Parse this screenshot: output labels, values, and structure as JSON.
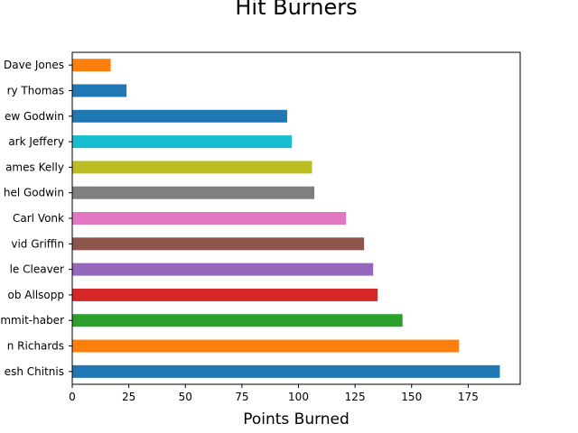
{
  "chart_data": {
    "type": "bar",
    "orientation": "horizontal",
    "title": "Hit Burners",
    "xlabel": "Points Burned",
    "ylabel": "",
    "xlim": [
      0,
      198
    ],
    "xticks": [
      0,
      25,
      50,
      75,
      100,
      125,
      150,
      175
    ],
    "grid": false,
    "legend": "none",
    "categories": [
      "Dave Jones",
      "ry Thomas",
      "ew Godwin",
      "ark Jeffery",
      "ames Kelly",
      "hel Godwin",
      "Carl Vonk",
      "vid Griffin",
      "le Cleaver",
      "ob Allsopp",
      "mmit-haber",
      "n Richards",
      "esh Chitnis"
    ],
    "values": [
      17,
      24,
      95,
      97,
      106,
      107,
      121,
      129,
      133,
      135,
      146,
      171,
      189
    ],
    "colors": [
      "#ff7f0e",
      "#1f77b4",
      "#1f77b4",
      "#17becf",
      "#bcbd22",
      "#7f7f7f",
      "#e377c2",
      "#8c564b",
      "#9467bd",
      "#d62728",
      "#2ca02c",
      "#ff7f0e",
      "#1f77b4"
    ]
  }
}
